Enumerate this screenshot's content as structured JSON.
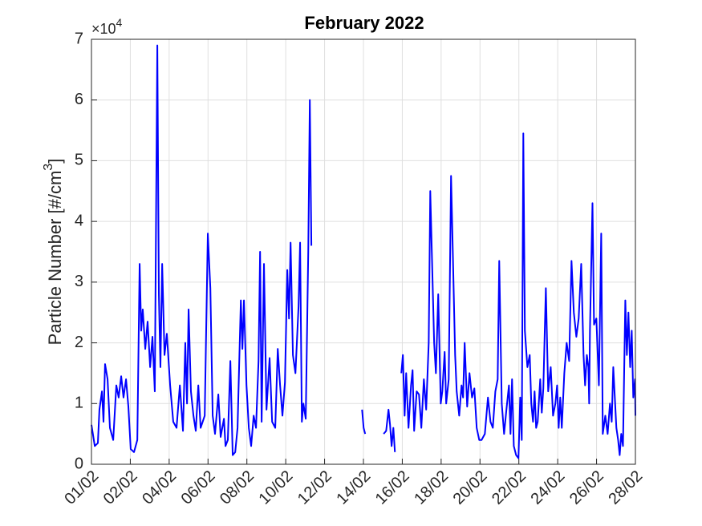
{
  "chart_data": {
    "type": "line",
    "title": "February 2022",
    "ylabel": [
      "Particle Number [#/cm",
      "3",
      "]"
    ],
    "y_multiplier": [
      "×10",
      "4"
    ],
    "color": "#0000ff",
    "grid": true,
    "xlim": [
      0,
      28
    ],
    "xticks": [
      {
        "value": 0,
        "label": "01/02"
      },
      {
        "value": 2,
        "label": "02/02"
      },
      {
        "value": 4,
        "label": "04/02"
      },
      {
        "value": 6,
        "label": "06/02"
      },
      {
        "value": 8,
        "label": "08/02"
      },
      {
        "value": 10,
        "label": "10/02"
      },
      {
        "value": 12,
        "label": "12/02"
      },
      {
        "value": 14,
        "label": "14/02"
      },
      {
        "value": 16,
        "label": "16/02"
      },
      {
        "value": 18,
        "label": "18/02"
      },
      {
        "value": 20,
        "label": "20/02"
      },
      {
        "value": 22,
        "label": "22/02"
      },
      {
        "value": 24,
        "label": "24/02"
      },
      {
        "value": 26,
        "label": "26/02"
      },
      {
        "value": 28,
        "label": "28/02"
      }
    ],
    "ylim": [
      0,
      7
    ],
    "yticks": [
      0,
      1,
      2,
      3,
      4,
      5,
      6,
      7
    ],
    "x": [
      0,
      0.17,
      0.33,
      0.41,
      0.54,
      0.62,
      0.7,
      0.83,
      0.95,
      1.12,
      1.28,
      1.4,
      1.53,
      1.65,
      1.78,
      1.9,
      2.02,
      2.19,
      2.36,
      2.48,
      2.56,
      2.64,
      2.77,
      2.89,
      3.02,
      3.14,
      3.26,
      3.39,
      3.47,
      3.55,
      3.64,
      3.76,
      3.88,
      4.05,
      4.21,
      4.38,
      4.55,
      4.71,
      4.83,
      4.92,
      5.0,
      5.12,
      5.25,
      5.37,
      5.5,
      5.62,
      5.83,
      5.99,
      6.12,
      6.24,
      6.36,
      6.53,
      6.65,
      6.82,
      6.9,
      7.02,
      7.15,
      7.27,
      7.4,
      7.52,
      7.6,
      7.69,
      7.77,
      7.85,
      7.98,
      8.1,
      8.22,
      8.35,
      8.47,
      8.6,
      8.68,
      8.76,
      8.88,
      9.01,
      9.17,
      9.3,
      9.46,
      9.59,
      9.71,
      9.83,
      9.96,
      10.08,
      10.17,
      10.25,
      10.37,
      10.5,
      10.66,
      10.74,
      10.83,
      10.91,
      11.03,
      11.16,
      11.24,
      11.32,
      11.5,
      13.93,
      14.01,
      14.09,
      14.5,
      15.04,
      15.17,
      15.29,
      15.37,
      15.45,
      15.54,
      15.62,
      15.7,
      15.95,
      16.03,
      16.12,
      16.2,
      16.32,
      16.45,
      16.53,
      16.61,
      16.74,
      16.86,
      16.98,
      17.11,
      17.23,
      17.36,
      17.44,
      17.52,
      17.64,
      17.73,
      17.85,
      17.98,
      18.06,
      18.18,
      18.26,
      18.39,
      18.51,
      18.6,
      18.72,
      18.8,
      18.93,
      19.05,
      19.13,
      19.21,
      19.34,
      19.46,
      19.59,
      19.71,
      19.83,
      19.96,
      20.08,
      20.25,
      20.41,
      20.54,
      20.66,
      20.79,
      20.91,
      20.99,
      21.12,
      21.24,
      21.36,
      21.49,
      21.57,
      21.65,
      21.74,
      21.86,
      21.98,
      22.07,
      22.15,
      22.23,
      22.31,
      22.44,
      22.56,
      22.64,
      22.73,
      22.81,
      22.89,
      22.97,
      23.1,
      23.18,
      23.26,
      23.39,
      23.51,
      23.64,
      23.76,
      23.88,
      23.97,
      24.05,
      24.13,
      24.21,
      24.34,
      24.46,
      24.59,
      24.71,
      24.83,
      24.96,
      25.08,
      25.21,
      25.33,
      25.41,
      25.5,
      25.58,
      25.62,
      25.66,
      25.79,
      25.87,
      25.99,
      26.12,
      26.24,
      26.32,
      26.45,
      26.57,
      26.69,
      26.78,
      26.86,
      26.94,
      27.02,
      27.11,
      27.19,
      27.27,
      27.36,
      27.48,
      27.56,
      27.64,
      27.73,
      27.81,
      27.89,
      27.98,
      28.0
    ],
    "values": [
      0.65,
      0.3,
      0.35,
      0.9,
      1.2,
      0.7,
      1.65,
      1.4,
      0.6,
      0.4,
      1.3,
      1.1,
      1.45,
      1.1,
      1.4,
      0.95,
      0.25,
      0.2,
      0.4,
      3.3,
      2.2,
      2.55,
      1.9,
      2.35,
      1.6,
      2.1,
      1.2,
      6.9,
      2.8,
      1.6,
      3.3,
      1.8,
      2.15,
      1.3,
      0.7,
      0.6,
      1.3,
      0.55,
      2.0,
      1.0,
      2.55,
      1.2,
      0.8,
      0.55,
      1.3,
      0.6,
      0.8,
      3.8,
      2.9,
      0.8,
      0.5,
      1.15,
      0.45,
      0.75,
      0.3,
      0.4,
      1.7,
      0.15,
      0.2,
      0.6,
      1.6,
      2.7,
      1.9,
      2.7,
      1.3,
      0.6,
      0.3,
      0.8,
      0.6,
      1.7,
      3.5,
      0.7,
      3.3,
      0.9,
      1.75,
      0.7,
      0.6,
      1.9,
      1.3,
      0.8,
      1.35,
      3.2,
      2.4,
      3.65,
      1.8,
      1.5,
      2.6,
      3.65,
      0.7,
      1.0,
      0.75,
      3.5,
      6.0,
      3.6,
      null,
      0.9,
      0.6,
      0.5,
      null,
      0.5,
      0.55,
      0.9,
      0.65,
      0.3,
      0.6,
      0.2,
      null,
      1.5,
      1.8,
      0.8,
      1.5,
      0.6,
      1.3,
      1.55,
      0.55,
      1.2,
      1.15,
      0.6,
      1.4,
      0.9,
      2.0,
      4.5,
      3.5,
      2.0,
      1.5,
      2.8,
      1.0,
      1.2,
      1.85,
      1.0,
      1.4,
      4.75,
      3.5,
      1.8,
      1.2,
      0.8,
      1.3,
      1.1,
      2.0,
      0.95,
      1.5,
      1.1,
      1.25,
      0.6,
      0.4,
      0.4,
      0.5,
      1.1,
      0.7,
      0.6,
      1.2,
      1.4,
      3.35,
      1.0,
      0.5,
      0.9,
      1.3,
      0.5,
      1.4,
      0.3,
      0.15,
      0.1,
      1.1,
      0.4,
      5.45,
      2.2,
      1.6,
      1.8,
      1.0,
      0.7,
      1.2,
      0.6,
      0.7,
      1.4,
      0.85,
      1.25,
      2.9,
      1.2,
      1.6,
      0.8,
      1.0,
      1.3,
      0.6,
      1.1,
      0.6,
      1.5,
      2.0,
      1.7,
      3.35,
      2.5,
      2.1,
      2.4,
      3.3,
      1.8,
      1.3,
      1.8,
      1.6,
      1.0,
      2.2,
      4.3,
      2.3,
      2.4,
      1.3,
      3.8,
      0.5,
      0.8,
      0.5,
      1.0,
      0.7,
      1.6,
      1.1,
      0.6,
      0.4,
      0.15,
      0.5,
      0.3,
      2.7,
      1.8,
      2.5,
      1.6,
      2.2,
      1.1,
      1.4,
      0.8
    ]
  }
}
